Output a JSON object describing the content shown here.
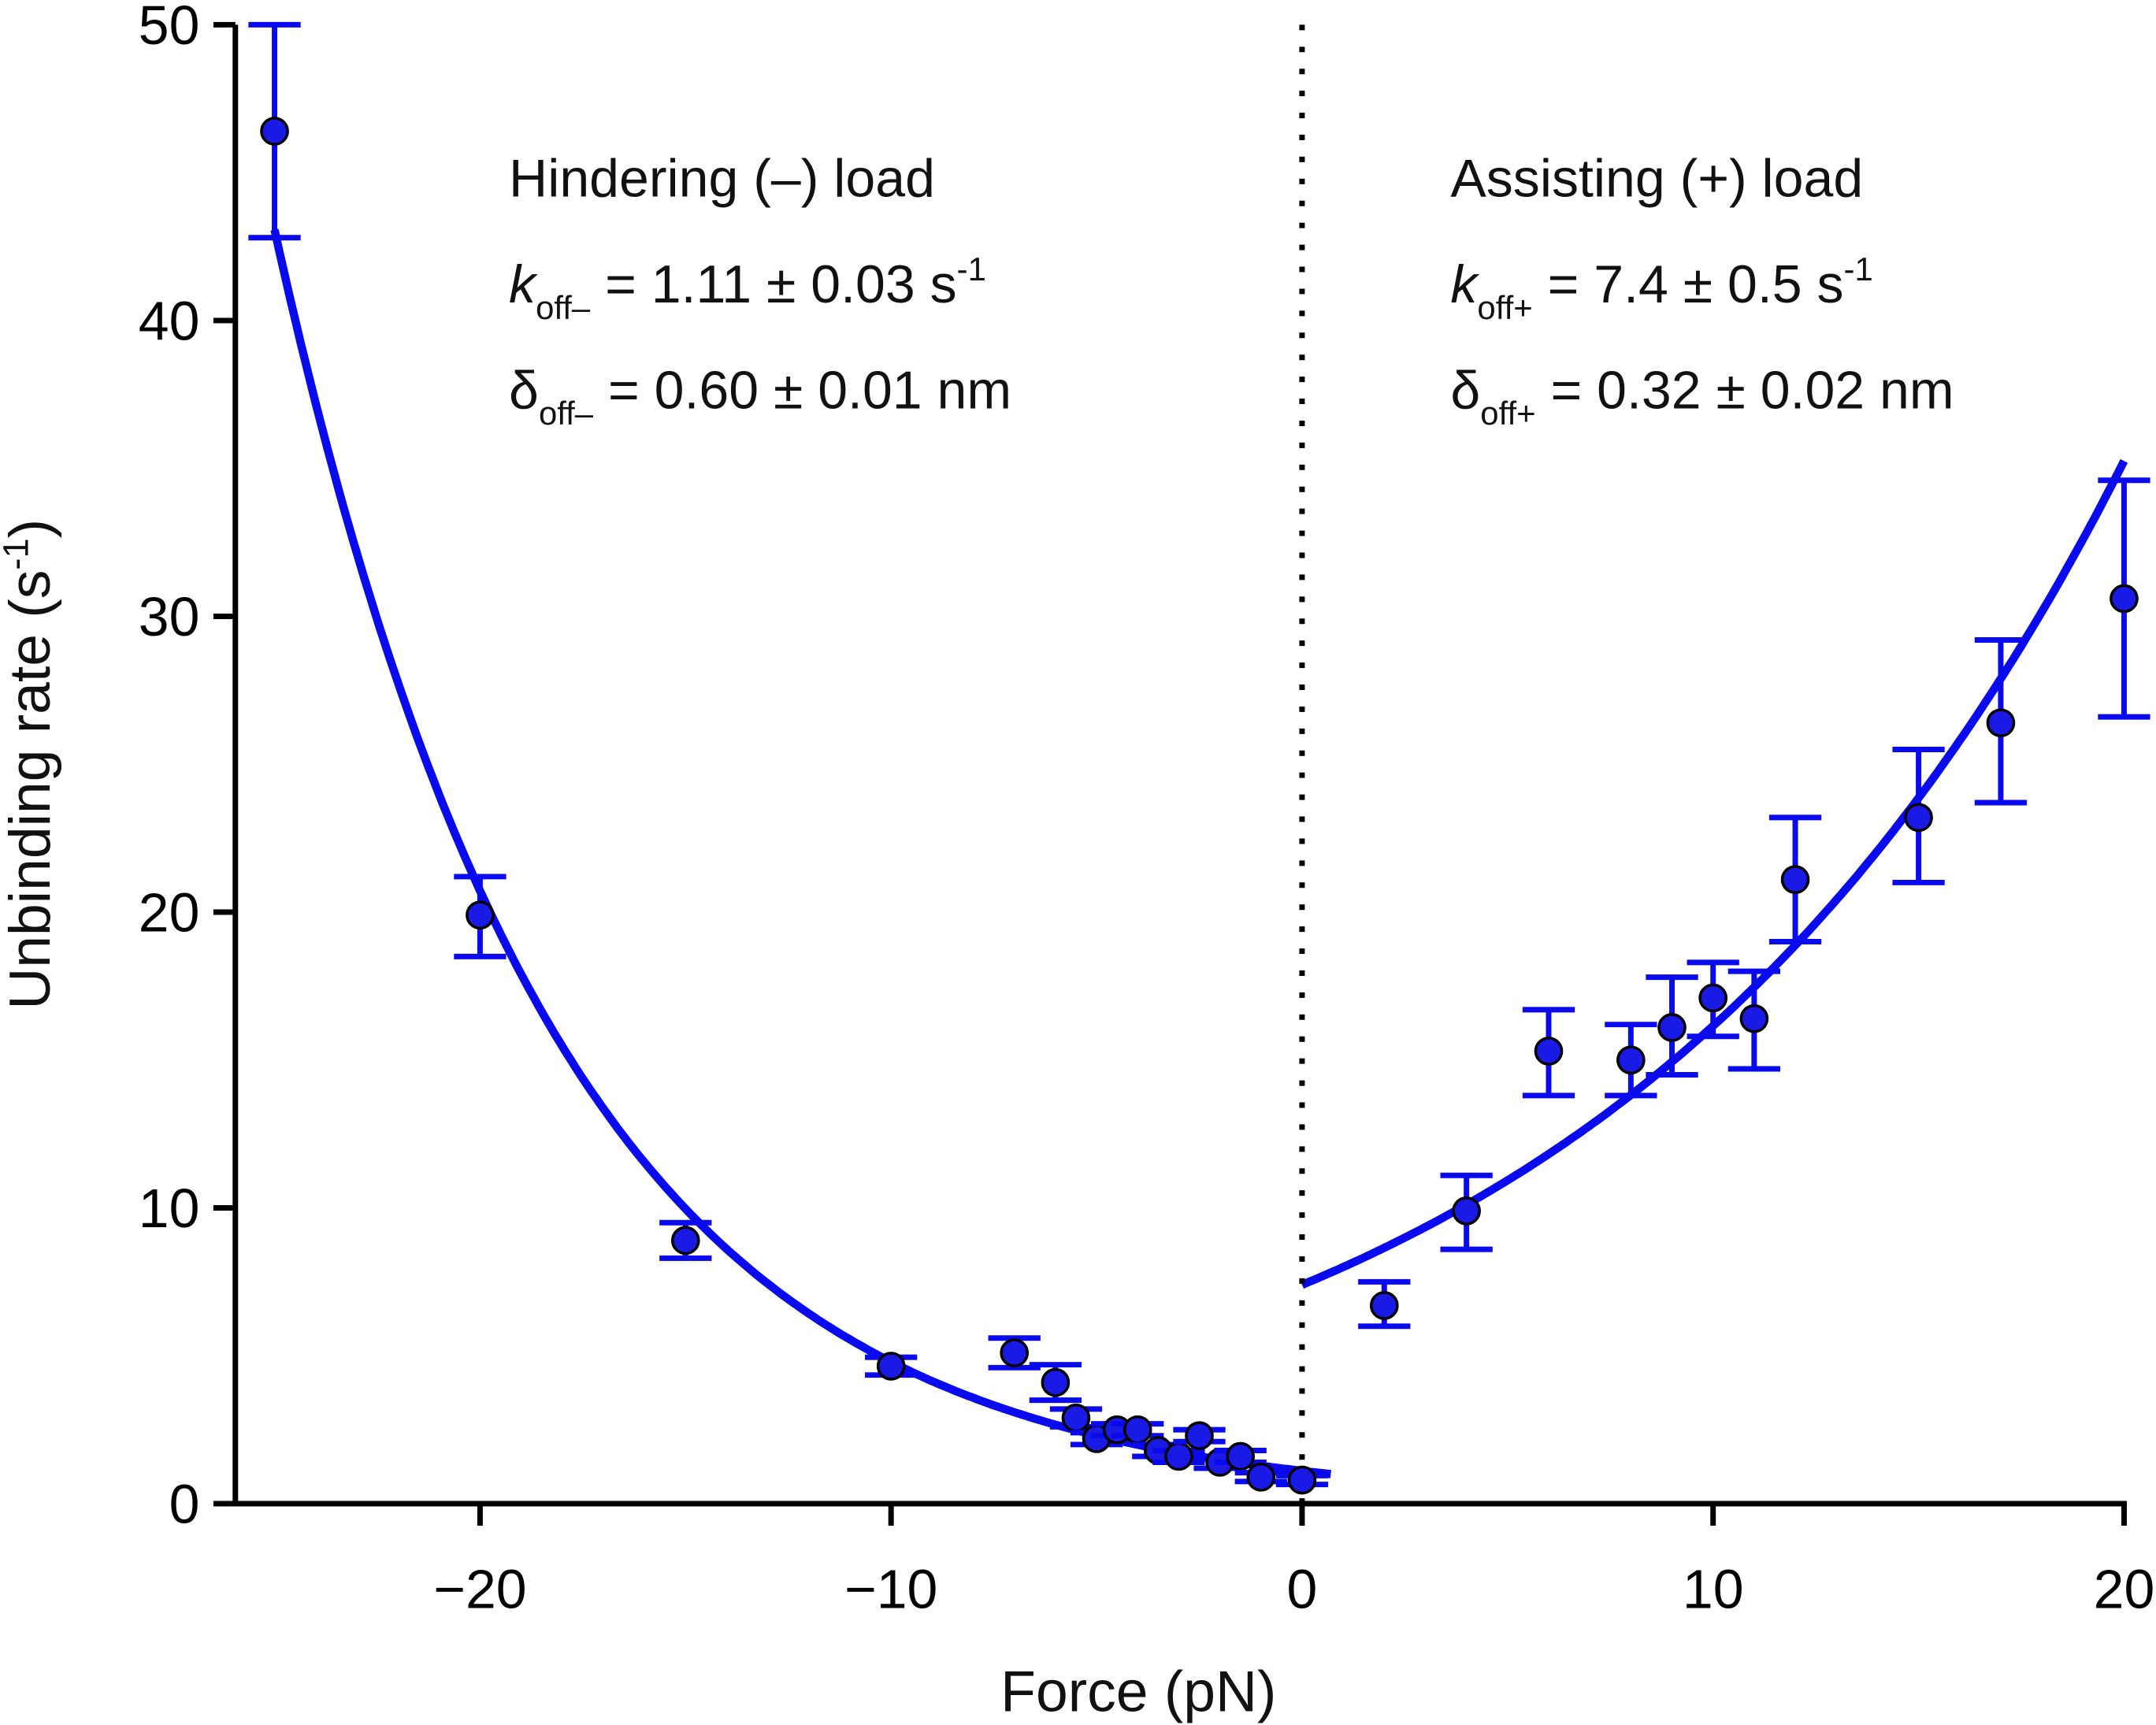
{
  "chart_data": {
    "type": "scatter",
    "xlabel": "Force (pN)",
    "ylabel": "Unbinding rate (s",
    "ylabel_sup": "-1",
    "ylabel_end": ")",
    "xlim": [
      -26,
      20
    ],
    "ylim": [
      0,
      50
    ],
    "xticks": [
      -20,
      -10,
      0,
      10,
      20
    ],
    "xtick_labels": [
      "−20",
      "−10",
      "0",
      "10",
      "20"
    ],
    "yticks": [
      0,
      10,
      20,
      30,
      40,
      50
    ],
    "ytick_labels": [
      "0",
      "10",
      "20",
      "30",
      "40",
      "50"
    ],
    "grid": false,
    "colors": {
      "series": "#0a0aef",
      "marker": "#1a1ae6",
      "divider": "#000000"
    },
    "divider_x": 0,
    "points": [
      {
        "x": -25,
        "y": 46.4,
        "ylo": 42.8,
        "yhi": 50.0
      },
      {
        "x": -20,
        "y": 19.9,
        "ylo": 18.5,
        "yhi": 21.2
      },
      {
        "x": -15,
        "y": 8.9,
        "ylo": 8.3,
        "yhi": 9.5
      },
      {
        "x": -10,
        "y": 4.65,
        "ylo": 4.35,
        "yhi": 4.95
      },
      {
        "x": -7,
        "y": 5.1,
        "ylo": 4.6,
        "yhi": 5.6
      },
      {
        "x": -6,
        "y": 4.1,
        "ylo": 3.5,
        "yhi": 4.7
      },
      {
        "x": -5.5,
        "y": 2.9,
        "ylo": 2.6,
        "yhi": 3.2
      },
      {
        "x": -5,
        "y": 2.2,
        "ylo": 2.0,
        "yhi": 2.4
      },
      {
        "x": -4.5,
        "y": 2.5,
        "ylo": 2.3,
        "yhi": 2.7
      },
      {
        "x": -4,
        "y": 2.5,
        "ylo": 2.3,
        "yhi": 2.7
      },
      {
        "x": -3.5,
        "y": 1.8,
        "ylo": 1.6,
        "yhi": 2.0
      },
      {
        "x": -3,
        "y": 1.6,
        "ylo": 1.4,
        "yhi": 1.8
      },
      {
        "x": -2.5,
        "y": 2.3,
        "ylo": 2.1,
        "yhi": 2.5
      },
      {
        "x": -2,
        "y": 1.4,
        "ylo": 1.2,
        "yhi": 1.6
      },
      {
        "x": -1.5,
        "y": 1.6,
        "ylo": 1.4,
        "yhi": 1.8
      },
      {
        "x": -1,
        "y": 0.9,
        "ylo": 0.75,
        "yhi": 1.05
      },
      {
        "x": 0,
        "y": 0.8,
        "ylo": 0.65,
        "yhi": 0.95
      },
      {
        "x": 2,
        "y": 6.7,
        "ylo": 6.0,
        "yhi": 7.5
      },
      {
        "x": 4,
        "y": 9.9,
        "ylo": 8.6,
        "yhi": 11.1
      },
      {
        "x": 6,
        "y": 15.3,
        "ylo": 13.8,
        "yhi": 16.7
      },
      {
        "x": 8,
        "y": 15.0,
        "ylo": 13.8,
        "yhi": 16.2
      },
      {
        "x": 9,
        "y": 16.1,
        "ylo": 14.5,
        "yhi": 17.8
      },
      {
        "x": 10,
        "y": 17.1,
        "ylo": 15.8,
        "yhi": 18.3
      },
      {
        "x": 11,
        "y": 16.4,
        "ylo": 14.7,
        "yhi": 18.0
      },
      {
        "x": 12,
        "y": 21.1,
        "ylo": 19.0,
        "yhi": 23.2
      },
      {
        "x": 15,
        "y": 23.2,
        "ylo": 21.0,
        "yhi": 25.5
      },
      {
        "x": 17,
        "y": 26.4,
        "ylo": 23.7,
        "yhi": 29.2
      },
      {
        "x": 20,
        "y": 30.6,
        "ylo": 26.6,
        "yhi": 34.6
      }
    ],
    "fits": [
      {
        "side": "hindering",
        "k0": 1.11,
        "delta": 0.6,
        "x_range": [
          -25,
          0.7
        ],
        "sign": -1
      },
      {
        "side": "assisting",
        "k0": 7.4,
        "delta": 0.32,
        "x_range": [
          0,
          20
        ],
        "sign": 1
      }
    ],
    "annotations": {
      "left": {
        "title": "Hindering (–) load",
        "k_sym": "k",
        "k_sub": "off–",
        "k_val": " = 1.11 ± 0.03 s",
        "k_sup": "-1",
        "d_sym": "δ",
        "d_sub": "off–",
        "d_val": " = 0.60 ± 0.01 nm"
      },
      "right": {
        "title": "Assisting (+) load",
        "k_sym": "k",
        "k_sub": "off+",
        "k_val": " = 7.4 ± 0.5 s",
        "k_sup": "-1",
        "d_sym": "δ",
        "d_sub": "off+",
        "d_val": " = 0.32 ± 0.02 nm"
      }
    }
  }
}
